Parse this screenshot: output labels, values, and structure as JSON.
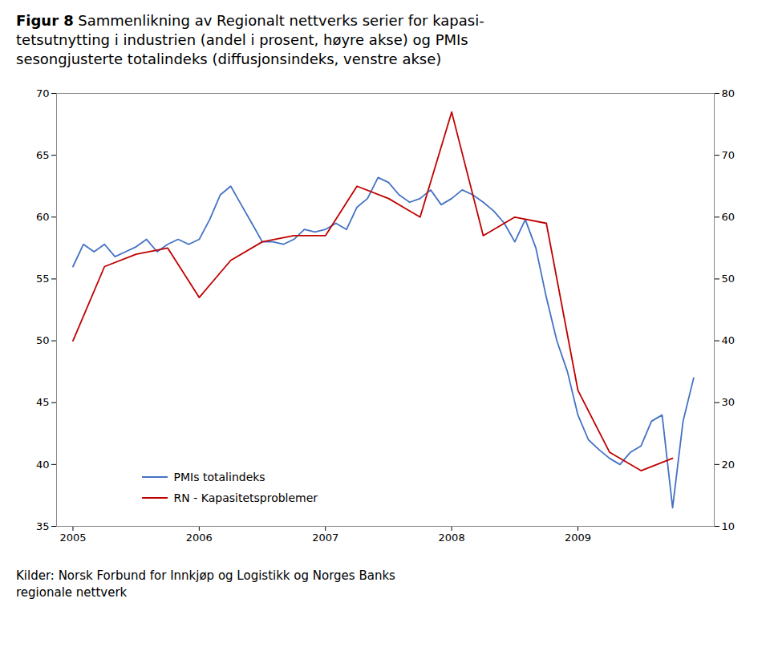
{
  "chart_data": {
    "type": "line",
    "title": "Figur 8",
    "subtitle": [
      "Sammenlikning av Regionalt nettverks serier for kapasi-",
      "tetsutnytting i industrien (andel i prosent, høyre akse) og PMIs",
      "sesongjusterte totalindeks (diffusjonsindeks, venstre akse)"
    ],
    "caption": [
      "Kilder: Norsk Forbund for Innkjøp og Logistikk og Norges Banks",
      "regionale nettverk"
    ],
    "xlim": [
      2004.87,
      2010.08
    ],
    "xticks": [
      2005,
      2006,
      2007,
      2008,
      2009
    ],
    "ylim": [
      35,
      70
    ],
    "yticks": [
      35,
      40,
      45,
      50,
      55,
      60,
      65,
      70
    ],
    "y2lim": [
      10,
      80
    ],
    "y2ticks": [
      10,
      20,
      30,
      40,
      50,
      60,
      70,
      80
    ],
    "grid": false,
    "legend": "lower left",
    "series": [
      {
        "name": "PMIs totalindeks",
        "color": "#4472C4",
        "axis": "y",
        "x": [
          2005.0,
          2005.083,
          2005.167,
          2005.25,
          2005.333,
          2005.417,
          2005.5,
          2005.583,
          2005.667,
          2005.75,
          2005.833,
          2005.917,
          2006.0,
          2006.083,
          2006.167,
          2006.25,
          2006.333,
          2006.417,
          2006.5,
          2006.583,
          2006.667,
          2006.75,
          2006.833,
          2006.917,
          2007.0,
          2007.083,
          2007.167,
          2007.25,
          2007.333,
          2007.417,
          2007.5,
          2007.583,
          2007.667,
          2007.75,
          2007.833,
          2007.917,
          2008.0,
          2008.083,
          2008.167,
          2008.25,
          2008.333,
          2008.417,
          2008.5,
          2008.583,
          2008.667,
          2008.75,
          2008.833,
          2008.917,
          2009.0,
          2009.083,
          2009.167,
          2009.25,
          2009.333,
          2009.417,
          2009.5,
          2009.583,
          2009.667,
          2009.75,
          2009.833,
          2009.917
        ],
        "values": [
          56.0,
          57.8,
          57.2,
          57.8,
          56.8,
          57.2,
          57.6,
          58.2,
          57.2,
          57.8,
          58.2,
          57.8,
          58.2,
          59.8,
          61.8,
          62.5,
          61.0,
          59.5,
          58.0,
          58.0,
          57.8,
          58.2,
          59.0,
          58.8,
          59.0,
          59.5,
          59.0,
          60.8,
          61.5,
          63.2,
          62.8,
          61.8,
          61.2,
          61.5,
          62.2,
          61.0,
          61.5,
          62.2,
          61.8,
          61.2,
          60.5,
          59.5,
          58.0,
          59.8,
          57.5,
          53.5,
          50.0,
          47.5,
          44.0,
          42.0,
          41.2,
          40.5,
          40.0,
          41.0,
          41.5,
          43.5,
          44.0,
          36.5,
          43.5,
          47.0
        ]
      },
      {
        "name": "RN - Kapasitetsproblemer",
        "color": "#C00000",
        "axis": "y2",
        "x": [
          2005.0,
          2005.25,
          2005.5,
          2005.75,
          2006.0,
          2006.25,
          2006.5,
          2006.75,
          2007.0,
          2007.25,
          2007.5,
          2007.75,
          2008.0,
          2008.25,
          2008.5,
          2008.75,
          2009.0,
          2009.25,
          2009.5,
          2009.75
        ],
        "values": [
          40.0,
          52.0,
          54.0,
          55.0,
          47.0,
          53.0,
          56.0,
          57.0,
          57.0,
          65.0,
          63.0,
          60.0,
          77.0,
          57.0,
          60.0,
          59.0,
          32.0,
          22.0,
          19.0,
          21.0
        ]
      }
    ]
  }
}
